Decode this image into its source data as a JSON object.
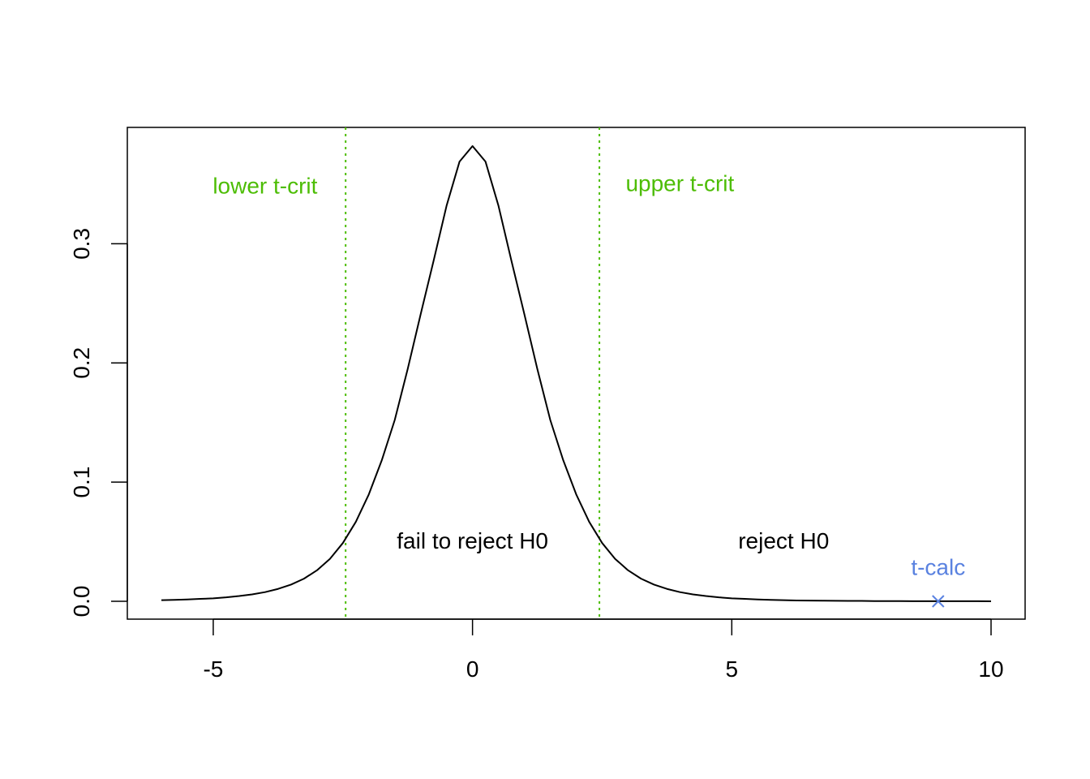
{
  "chart_data": {
    "type": "line",
    "xlim": [
      -6,
      10
    ],
    "ylim": [
      0,
      0.382
    ],
    "x_ticks": [
      -5,
      0,
      5,
      10
    ],
    "x_tick_labels": [
      "-5",
      "0",
      "5",
      "10"
    ],
    "y_ticks": [
      0.0,
      0.1,
      0.2,
      0.3
    ],
    "y_tick_labels": [
      "0.0",
      "0.1",
      "0.2",
      "0.3"
    ],
    "grid": false,
    "series": [
      {
        "color": "#000000",
        "x": [
          -6.0,
          -5.75,
          -5.5,
          -5.25,
          -5.0,
          -4.75,
          -4.5,
          -4.25,
          -4.0,
          -3.75,
          -3.5,
          -3.25,
          -3.0,
          -2.75,
          -2.5,
          -2.25,
          -2.0,
          -1.75,
          -1.5,
          -1.25,
          -1.0,
          -0.75,
          -0.5,
          -0.25,
          0.0,
          0.25,
          0.5,
          0.75,
          1.0,
          1.25,
          1.5,
          1.75,
          2.0,
          2.25,
          2.5,
          2.75,
          3.0,
          3.25,
          3.5,
          3.75,
          4.0,
          4.25,
          4.5,
          4.75,
          5.0,
          5.25,
          5.5,
          5.75,
          6.0,
          6.25,
          6.5,
          6.75,
          7.0,
          7.25,
          7.5,
          7.75,
          8.0,
          8.25,
          8.5,
          8.75,
          9.0,
          9.25,
          9.5,
          9.75,
          10.0
        ],
        "y": [
          0.0009,
          0.0012,
          0.0015,
          0.002,
          0.0025,
          0.0033,
          0.0044,
          0.0058,
          0.0077,
          0.0104,
          0.014,
          0.019,
          0.026,
          0.0356,
          0.0489,
          0.0667,
          0.0897,
          0.1183,
          0.1521,
          0.1949,
          0.2409,
          0.2858,
          0.332,
          0.369,
          0.382,
          0.369,
          0.332,
          0.2858,
          0.2409,
          0.1949,
          0.1521,
          0.1183,
          0.0897,
          0.0667,
          0.0489,
          0.0356,
          0.026,
          0.019,
          0.014,
          0.0104,
          0.0077,
          0.0058,
          0.0044,
          0.0033,
          0.0025,
          0.002,
          0.0015,
          0.0012,
          0.0009,
          0.0007,
          0.0006,
          0.0005,
          0.0004,
          0.0003,
          0.0003,
          0.0002,
          0.0002,
          0.0002,
          0.0001,
          0.0001,
          0.0001,
          0.0001,
          0.0001,
          0.0001,
          0.0
        ]
      }
    ],
    "vlines": [
      {
        "x": -2.447,
        "color": "#4dbd05",
        "style": "dotted"
      },
      {
        "x": 2.447,
        "color": "#4dbd05",
        "style": "dotted"
      }
    ],
    "point": {
      "x": 8.98,
      "y": 0.0,
      "color": "#5a82e0",
      "marker": "x"
    },
    "annotations": [
      {
        "text": "lower t-crit",
        "x": -4.0,
        "y": 0.349,
        "color": "#4dbd05"
      },
      {
        "text": "upper t-crit",
        "x": 4.0,
        "y": 0.351,
        "color": "#4dbd05"
      },
      {
        "text": "fail to reject H0",
        "x": 0.0,
        "y": 0.051,
        "color": "#000000"
      },
      {
        "text": "reject H0",
        "x": 6.0,
        "y": 0.051,
        "color": "#000000"
      },
      {
        "text": "t-calc",
        "x": 8.98,
        "y": 0.029,
        "color": "#5a82e0"
      }
    ]
  }
}
